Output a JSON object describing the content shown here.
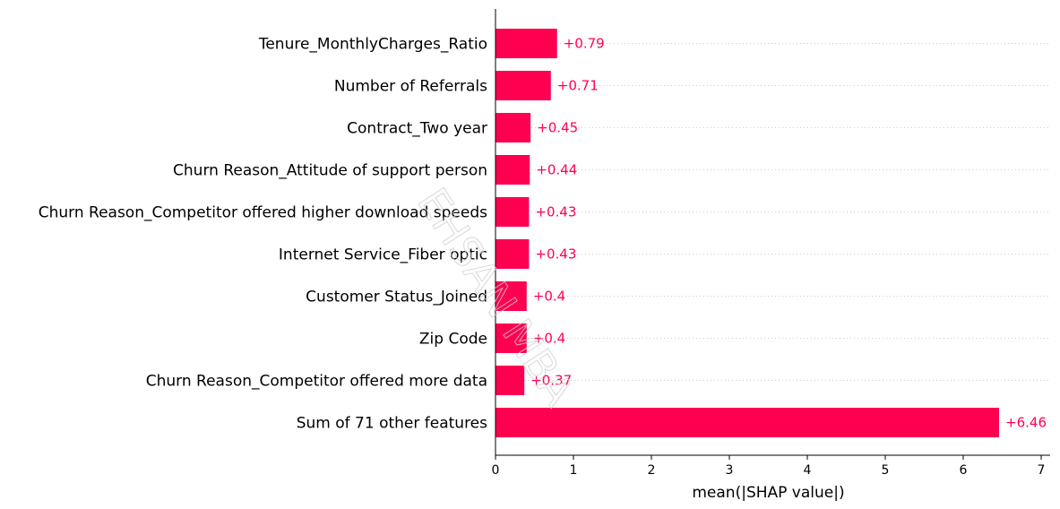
{
  "chart_data": {
    "type": "bar",
    "orientation": "horizontal",
    "categories": [
      "Tenure_MonthlyCharges_Ratio",
      "Number of Referrals",
      "Contract_Two year",
      "Churn Reason_Attitude of support person",
      "Churn Reason_Competitor offered higher download speeds",
      "Internet Service_Fiber optic",
      "Customer Status_Joined",
      "Zip Code",
      "Churn Reason_Competitor offered more data",
      "Sum of 71 other features"
    ],
    "values": [
      0.79,
      0.71,
      0.45,
      0.44,
      0.43,
      0.43,
      0.4,
      0.4,
      0.37,
      6.46
    ],
    "value_labels": [
      "+0.79",
      "+0.71",
      "+0.45",
      "+0.44",
      "+0.43",
      "+0.43",
      "+0.4",
      "+0.4",
      "+0.37",
      "+6.46"
    ],
    "xlabel": "mean(|SHAP value|)",
    "ylabel": "",
    "title": "",
    "xlim": [
      0,
      7.1
    ],
    "xticks": [
      0,
      1,
      2,
      3,
      4,
      5,
      6,
      7
    ],
    "grid": "horizontal dotted row guides",
    "legend": "none",
    "colors": {
      "bar": "#ff0051",
      "value_text": "#ff0051",
      "axis": "#000000",
      "grid": "#cccccc"
    }
  },
  "watermark": {
    "text": "EHSAN MBA",
    "color": "#cfcfcf"
  }
}
